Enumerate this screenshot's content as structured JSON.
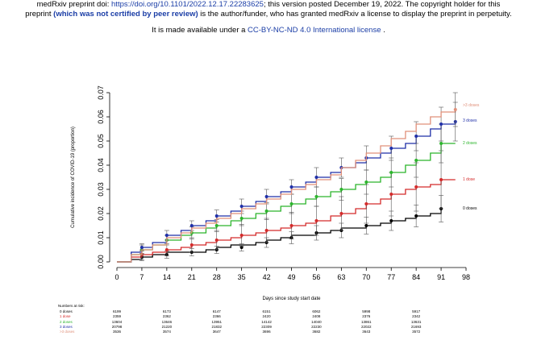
{
  "header": {
    "line1_prefix": "medRxiv preprint doi: ",
    "doi_link": "https://doi.org/10.1101/2022.12.17.22283625",
    "line1_suffix": "; this version posted December 19, 2022. The copyright holder for this",
    "line2_prefix": "preprint ",
    "line2_bold": "(which was not certified by peer review)",
    "line2_suffix": " is the author/funder, who has granted medRxiv a license to display the preprint in perpetuity.",
    "line3_prefix": "It is made available under a ",
    "license_link": "CC-BY-NC-ND 4.0 International license",
    "line3_suffix": " ."
  },
  "chart_data": {
    "type": "line",
    "xlabel": "Days since study start date",
    "ylabel": "Cumulative incidence of COVID-19 (proportion)",
    "xlim": [
      0,
      98
    ],
    "ylim": [
      0,
      0.07
    ],
    "x_ticks": [
      "0",
      "7",
      "14",
      "21",
      "28",
      "35",
      "42",
      "49",
      "56",
      "63",
      "70",
      "77",
      "84",
      "91",
      "98"
    ],
    "y_ticks": [
      "0.00",
      "0.01",
      "0.02",
      "0.03",
      "0.04",
      "0.05",
      "0.06",
      "0.07"
    ],
    "grid": false,
    "legend_placement": "right (labels at line ends)",
    "series": [
      {
        "name": "0 doses",
        "color": "#000000",
        "x": [
          0,
          4,
          7,
          10,
          14,
          18,
          21,
          25,
          28,
          32,
          35,
          39,
          42,
          46,
          49,
          53,
          56,
          60,
          63,
          67,
          70,
          74,
          77,
          81,
          84,
          88,
          91
        ],
        "y": [
          0.0,
          0.001,
          0.002,
          0.003,
          0.004,
          0.004,
          0.004,
          0.005,
          0.006,
          0.007,
          0.007,
          0.008,
          0.009,
          0.01,
          0.011,
          0.011,
          0.012,
          0.013,
          0.014,
          0.014,
          0.015,
          0.016,
          0.017,
          0.018,
          0.019,
          0.02,
          0.022
        ],
        "marker_x": [
          7,
          14,
          21,
          28,
          35,
          42,
          49,
          56,
          63,
          70,
          77,
          84,
          91
        ],
        "marker_y": [
          0.002,
          0.003,
          0.004,
          0.005,
          0.006,
          0.008,
          0.01,
          0.012,
          0.013,
          0.015,
          0.017,
          0.019,
          0.022
        ],
        "ci_lo": [
          0.0005,
          0.0015,
          0.0025,
          0.0035,
          0.0045,
          0.006,
          0.0075,
          0.009,
          0.01,
          0.0115,
          0.013,
          0.0145,
          0.0165
        ],
        "ci_hi": [
          0.0035,
          0.0045,
          0.0055,
          0.0065,
          0.0075,
          0.01,
          0.0125,
          0.015,
          0.016,
          0.0185,
          0.021,
          0.0235,
          0.0275
        ]
      },
      {
        "name": "1 dose",
        "color": "#d42a2a",
        "x": [
          0,
          4,
          7,
          10,
          14,
          18,
          21,
          25,
          28,
          32,
          35,
          39,
          42,
          46,
          49,
          53,
          56,
          60,
          63,
          67,
          70,
          74,
          77,
          81,
          84,
          88,
          91,
          95
        ],
        "y": [
          0.0,
          0.002,
          0.003,
          0.004,
          0.005,
          0.006,
          0.007,
          0.008,
          0.009,
          0.01,
          0.011,
          0.012,
          0.013,
          0.014,
          0.015,
          0.016,
          0.017,
          0.019,
          0.02,
          0.022,
          0.024,
          0.026,
          0.028,
          0.03,
          0.031,
          0.032,
          0.034,
          0.034
        ],
        "marker_x": [
          7,
          14,
          21,
          28,
          35,
          42,
          49,
          56,
          63,
          70,
          77,
          84,
          91
        ],
        "marker_y": [
          0.003,
          0.005,
          0.007,
          0.009,
          0.011,
          0.013,
          0.015,
          0.017,
          0.02,
          0.024,
          0.028,
          0.031,
          0.034
        ],
        "ci_lo": [
          0.001,
          0.0025,
          0.004,
          0.005,
          0.0065,
          0.008,
          0.0095,
          0.011,
          0.013,
          0.016,
          0.019,
          0.021,
          0.022
        ],
        "ci_hi": [
          0.005,
          0.0075,
          0.01,
          0.013,
          0.0155,
          0.018,
          0.0205,
          0.023,
          0.027,
          0.032,
          0.037,
          0.041,
          0.046
        ]
      },
      {
        "name": "2 doses",
        "color": "#2bb52b",
        "x": [
          0,
          4,
          7,
          10,
          14,
          18,
          21,
          25,
          28,
          32,
          35,
          39,
          42,
          46,
          49,
          53,
          56,
          60,
          63,
          67,
          70,
          74,
          77,
          81,
          84,
          88,
          91,
          95
        ],
        "y": [
          0.0,
          0.003,
          0.005,
          0.007,
          0.009,
          0.011,
          0.012,
          0.014,
          0.015,
          0.017,
          0.018,
          0.02,
          0.021,
          0.023,
          0.024,
          0.026,
          0.027,
          0.029,
          0.03,
          0.032,
          0.033,
          0.035,
          0.037,
          0.04,
          0.042,
          0.045,
          0.049,
          0.049
        ],
        "marker_x": [
          7,
          14,
          21,
          28,
          35,
          42,
          49,
          56,
          63,
          70,
          77,
          84,
          91
        ],
        "marker_y": [
          0.005,
          0.009,
          0.012,
          0.015,
          0.018,
          0.021,
          0.024,
          0.027,
          0.03,
          0.033,
          0.037,
          0.042,
          0.049
        ],
        "ci_lo": [
          0.003,
          0.007,
          0.0095,
          0.0125,
          0.015,
          0.0175,
          0.02,
          0.023,
          0.0255,
          0.028,
          0.031,
          0.035,
          0.041
        ],
        "ci_hi": [
          0.007,
          0.011,
          0.0145,
          0.0175,
          0.021,
          0.0245,
          0.028,
          0.031,
          0.0345,
          0.038,
          0.043,
          0.049,
          0.057
        ]
      },
      {
        "name": "3 doses",
        "color": "#1f2fa8",
        "x": [
          0,
          4,
          7,
          10,
          14,
          18,
          21,
          25,
          28,
          32,
          35,
          39,
          42,
          46,
          49,
          53,
          56,
          60,
          63,
          67,
          70,
          74,
          77,
          81,
          84,
          88,
          91,
          95
        ],
        "y": [
          0.0,
          0.004,
          0.006,
          0.008,
          0.011,
          0.013,
          0.015,
          0.017,
          0.019,
          0.021,
          0.023,
          0.025,
          0.027,
          0.029,
          0.031,
          0.033,
          0.035,
          0.037,
          0.039,
          0.041,
          0.043,
          0.045,
          0.047,
          0.049,
          0.052,
          0.055,
          0.057,
          0.058
        ],
        "marker_x": [
          7,
          14,
          21,
          28,
          35,
          42,
          49,
          56,
          63,
          70,
          77,
          84,
          91,
          95
        ],
        "marker_y": [
          0.006,
          0.011,
          0.015,
          0.019,
          0.023,
          0.027,
          0.031,
          0.035,
          0.039,
          0.043,
          0.047,
          0.052,
          0.057,
          0.058
        ],
        "ci_lo": [
          0.0045,
          0.009,
          0.013,
          0.0165,
          0.02,
          0.024,
          0.028,
          0.031,
          0.035,
          0.038,
          0.042,
          0.046,
          0.05,
          0.05
        ],
        "ci_hi": [
          0.0075,
          0.013,
          0.017,
          0.0215,
          0.026,
          0.03,
          0.034,
          0.039,
          0.043,
          0.048,
          0.052,
          0.058,
          0.064,
          0.066
        ]
      },
      {
        "name": ">3 doses",
        "color": "#e0907a",
        "x": [
          0,
          4,
          7,
          10,
          14,
          18,
          21,
          25,
          28,
          32,
          35,
          39,
          42,
          46,
          49,
          53,
          56,
          60,
          63,
          67,
          70,
          74,
          77,
          81,
          84,
          88,
          91,
          95
        ],
        "y": [
          0.0,
          0.003,
          0.005,
          0.007,
          0.01,
          0.012,
          0.014,
          0.016,
          0.018,
          0.02,
          0.022,
          0.024,
          0.026,
          0.028,
          0.03,
          0.032,
          0.034,
          0.036,
          0.039,
          0.042,
          0.045,
          0.048,
          0.051,
          0.054,
          0.057,
          0.06,
          0.062,
          0.063
        ],
        "marker_x": [
          95
        ],
        "marker_y": [
          0.063
        ],
        "ci_lo": [
          0.056
        ],
        "ci_hi": [
          0.07
        ]
      }
    ]
  },
  "risk_table": {
    "title": "Numbers at risk:",
    "rows": [
      {
        "label": "0 doses",
        "color": "#000000",
        "values": [
          "6199",
          "6173",
          "6147",
          "6151",
          "6062",
          "5998",
          "5917"
        ]
      },
      {
        "label": "1 dose",
        "color": "#d42a2a",
        "values": [
          "2359",
          "2362",
          "2366",
          "2420",
          "2408",
          "2376",
          "2342"
        ]
      },
      {
        "label": "2 doses",
        "color": "#2bb52b",
        "values": [
          "13604",
          "13646",
          "13951",
          "14142",
          "14040",
          "13861",
          "13631"
        ]
      },
      {
        "label": "3 doses",
        "color": "#1f2fa8",
        "values": [
          "20798",
          "21220",
          "21832",
          "22309",
          "22230",
          "22022",
          "21693"
        ]
      },
      {
        "label": ">3 doses",
        "color": "#e0907a",
        "values": [
          "3536",
          "3574",
          "3647",
          "3696",
          "3682",
          "3643",
          "3572"
        ]
      }
    ]
  }
}
